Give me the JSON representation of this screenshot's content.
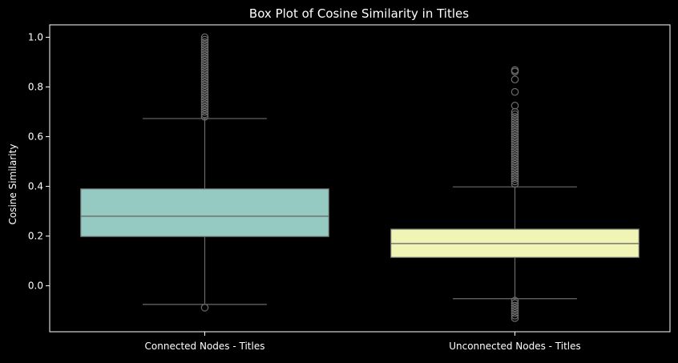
{
  "chart_data": {
    "type": "box",
    "title": "Box Plot of Cosine Similarity in Titles",
    "xlabel": "",
    "ylabel": "Cosine Similarity",
    "ylim": [
      -0.185,
      1.05
    ],
    "yticks": [
      0.0,
      0.2,
      0.4,
      0.6,
      0.8,
      1.0
    ],
    "ytick_labels": [
      "0.0",
      "0.2",
      "0.4",
      "0.6",
      "0.8",
      "1.0"
    ],
    "categories": [
      "Connected Nodes - Titles",
      "Unconnected Nodes - Titles"
    ],
    "grid": false,
    "boxes": [
      {
        "category": "Connected Nodes - Titles",
        "color": "#95cac2",
        "whisker_low": -0.075,
        "q1": 0.198,
        "median": 0.28,
        "q3": 0.39,
        "whisker_high": 0.673,
        "outliers_low": [
          -0.088
        ],
        "outliers_high": [
          0.68,
          0.69,
          0.7,
          0.71,
          0.72,
          0.73,
          0.74,
          0.75,
          0.76,
          0.77,
          0.78,
          0.79,
          0.8,
          0.81,
          0.82,
          0.83,
          0.84,
          0.85,
          0.86,
          0.87,
          0.88,
          0.89,
          0.9,
          0.91,
          0.92,
          0.93,
          0.94,
          0.95,
          0.96,
          0.97,
          0.98,
          0.99,
          1.0
        ]
      },
      {
        "category": "Unconnected Nodes - Titles",
        "color": "#f0f5b5",
        "whisker_low": -0.052,
        "q1": 0.114,
        "median": 0.17,
        "q3": 0.228,
        "whisker_high": 0.398,
        "outliers_low": [
          -0.06,
          -0.07,
          -0.08,
          -0.09,
          -0.1,
          -0.11,
          -0.12,
          -0.13
        ],
        "outliers_high": [
          0.41,
          0.42,
          0.43,
          0.44,
          0.45,
          0.46,
          0.47,
          0.48,
          0.49,
          0.5,
          0.51,
          0.52,
          0.53,
          0.54,
          0.55,
          0.56,
          0.57,
          0.58,
          0.59,
          0.6,
          0.61,
          0.62,
          0.63,
          0.64,
          0.65,
          0.66,
          0.67,
          0.68,
          0.69,
          0.7,
          0.725,
          0.78,
          0.83,
          0.862,
          0.868
        ]
      }
    ]
  },
  "colors": {
    "background": "#000000",
    "axes": "#ffffff",
    "text": "#ffffff",
    "lines": "#6b6b6b",
    "outliers": "#6b6b6b"
  }
}
